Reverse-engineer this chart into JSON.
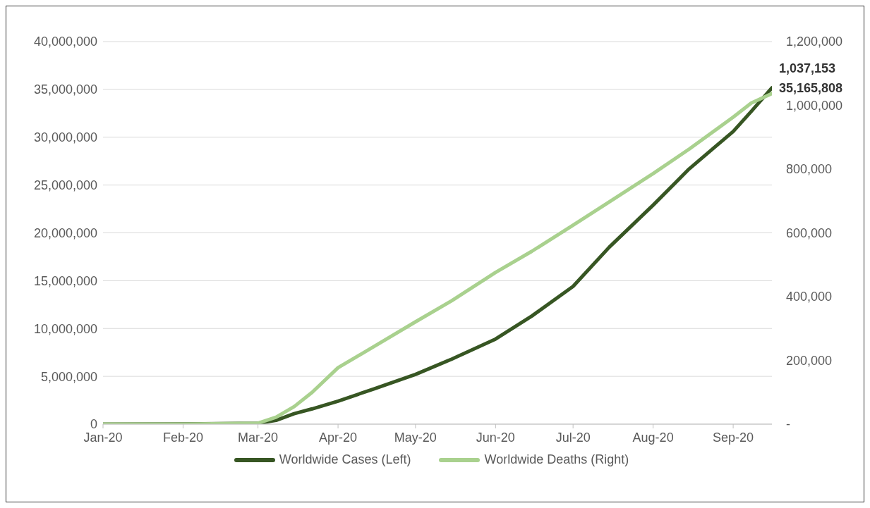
{
  "chart_data": {
    "type": "line",
    "x": [
      "2020-01-01",
      "2020-02-01",
      "2020-03-01",
      "2020-03-08",
      "2020-03-15",
      "2020-03-22",
      "2020-04-01",
      "2020-04-15",
      "2020-05-01",
      "2020-05-15",
      "2020-06-01",
      "2020-06-15",
      "2020-07-01",
      "2020-07-15",
      "2020-08-01",
      "2020-08-15",
      "2020-09-01",
      "2020-09-08",
      "2020-09-16"
    ],
    "series": [
      {
        "name": "Worldwide Cases (Left)",
        "color": "#375623",
        "values": [
          0,
          10000,
          90000,
          400000,
          1100000,
          1600000,
          2400000,
          3700000,
          5200000,
          6800000,
          8900000,
          11300000,
          14400000,
          18500000,
          22900000,
          26700000,
          30600000,
          32700000,
          35165808
        ],
        "value_labels": [
          null,
          null,
          null,
          null,
          null,
          null,
          null,
          null,
          null,
          null,
          null,
          null,
          null,
          null,
          null,
          null,
          null,
          null,
          "35,165,808"
        ]
      },
      {
        "name": "Worldwide Deaths (Right)",
        "color": "#a9d18e",
        "axis": "y2",
        "values": [
          0,
          0,
          3000,
          22000,
          55000,
          100000,
          177000,
          244000,
          321000,
          387000,
          476000,
          542000,
          624000,
          697000,
          786000,
          863000,
          963000,
          1007000,
          1037153
        ],
        "value_labels": [
          null,
          null,
          null,
          null,
          null,
          null,
          null,
          null,
          null,
          null,
          null,
          null,
          null,
          null,
          null,
          null,
          null,
          null,
          "1,037,153"
        ]
      }
    ],
    "xlim": [
      "2020-01-01",
      "2020-09-16"
    ],
    "xticks": [
      {
        "value": "2020-01-01",
        "label": "Jan-20"
      },
      {
        "value": "2020-02-01",
        "label": "Feb-20"
      },
      {
        "value": "2020-03-01",
        "label": "Mar-20"
      },
      {
        "value": "2020-04-01",
        "label": "Apr-20"
      },
      {
        "value": "2020-05-01",
        "label": "May-20"
      },
      {
        "value": "2020-06-01",
        "label": "Jun-20"
      },
      {
        "value": "2020-07-01",
        "label": "Jul-20"
      },
      {
        "value": "2020-08-01",
        "label": "Aug-20"
      },
      {
        "value": "2020-09-01",
        "label": "Sep-20"
      }
    ],
    "ylim": [
      0,
      40000000
    ],
    "yticks": [
      0,
      {
        "value": 5000000,
        "label": "5,000,000"
      },
      {
        "value": 10000000,
        "label": "10,000,000"
      },
      {
        "value": 15000000,
        "label": "15,000,000"
      },
      {
        "value": 20000000,
        "label": "20,000,000"
      },
      {
        "value": 25000000,
        "label": "25,000,000"
      },
      {
        "value": 30000000,
        "label": "30,000,000"
      },
      {
        "value": 35000000,
        "label": "35,000,000"
      },
      {
        "value": 40000000,
        "label": "40,000,000"
      }
    ],
    "y2lim": [
      0,
      1200000
    ],
    "y2ticks": [
      {
        "value": 0,
        "label": "-"
      },
      {
        "value": 200000,
        "label": "200,000"
      },
      {
        "value": 400000,
        "label": "400,000"
      },
      {
        "value": 600000,
        "label": "600,000"
      },
      {
        "value": 800000,
        "label": "800,000"
      },
      {
        "value": 1000000,
        "label": "1,000,000"
      },
      {
        "value": 1200000,
        "label": "1,200,000"
      }
    ],
    "grid": "y",
    "legend": "bottom",
    "marker": "none",
    "line_style": "solid"
  }
}
